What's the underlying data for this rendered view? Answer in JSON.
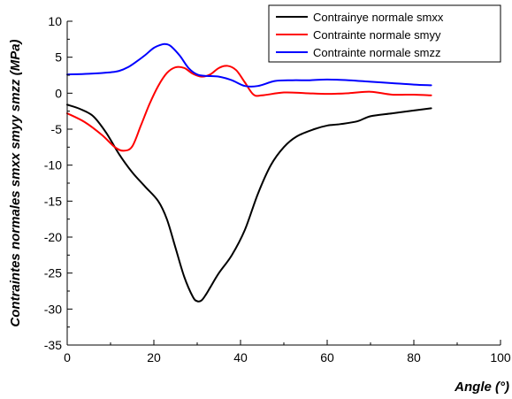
{
  "chart_data": {
    "type": "line",
    "xlabel": "Angle (°)",
    "ylabel": "Contraintes normales smxx smyy smzz (MPa)",
    "xlim": [
      0,
      100
    ],
    "ylim": [
      -35,
      10
    ],
    "xticks": [
      0,
      20,
      40,
      60,
      80,
      100
    ],
    "yticks": [
      10,
      5,
      0,
      -5,
      -10,
      -15,
      -20,
      -25,
      -30,
      -35
    ],
    "grid": false,
    "legend_position": "top-right",
    "series": [
      {
        "name": "Contrainye normale smxx",
        "color": "#000000",
        "x": [
          0,
          3,
          6,
          9,
          12,
          15,
          18,
          21,
          23,
          25,
          27,
          29,
          30,
          31,
          32,
          33,
          35,
          38,
          41,
          44,
          47,
          50,
          53,
          57,
          60,
          63,
          67,
          70,
          75,
          80,
          84
        ],
        "y": [
          -1.6,
          -2.2,
          -3.2,
          -5.5,
          -8.5,
          -11.0,
          -13.0,
          -15.0,
          -17.5,
          -21.5,
          -25.5,
          -28.3,
          -28.9,
          -28.8,
          -28.0,
          -27.0,
          -25.0,
          -22.5,
          -19.0,
          -14.0,
          -10.0,
          -7.5,
          -6.0,
          -5.0,
          -4.5,
          -4.3,
          -3.9,
          -3.2,
          -2.8,
          -2.4,
          -2.1
        ]
      },
      {
        "name": "Contrainte normale smyy",
        "color": "#ff0000",
        "x": [
          0,
          4,
          8,
          11,
          13,
          15,
          17,
          19,
          21,
          23,
          25,
          27,
          29,
          31,
          33,
          35,
          37,
          39,
          41,
          43,
          45,
          50,
          55,
          60,
          65,
          70,
          75,
          80,
          84
        ],
        "y": [
          -2.8,
          -4.0,
          -5.8,
          -7.5,
          -8.0,
          -7.4,
          -4.5,
          -1.5,
          1.0,
          2.8,
          3.6,
          3.5,
          2.7,
          2.3,
          2.6,
          3.5,
          3.8,
          3.2,
          1.5,
          -0.2,
          -0.3,
          0.1,
          0.0,
          -0.1,
          0.0,
          0.2,
          -0.2,
          -0.2,
          -0.3
        ]
      },
      {
        "name": "Contrainte normale smzz",
        "color": "#0000ff",
        "x": [
          0,
          5,
          10,
          12,
          14,
          16,
          18,
          20,
          22,
          23,
          24,
          26,
          28,
          30,
          32,
          35,
          38,
          41,
          44,
          48,
          52,
          56,
          60,
          65,
          70,
          75,
          80,
          84
        ],
        "y": [
          2.6,
          2.7,
          2.9,
          3.1,
          3.6,
          4.4,
          5.3,
          6.3,
          6.8,
          6.8,
          6.5,
          5.2,
          3.5,
          2.6,
          2.4,
          2.3,
          1.8,
          1.0,
          1.0,
          1.7,
          1.8,
          1.8,
          1.9,
          1.8,
          1.6,
          1.4,
          1.2,
          1.1
        ]
      }
    ]
  }
}
